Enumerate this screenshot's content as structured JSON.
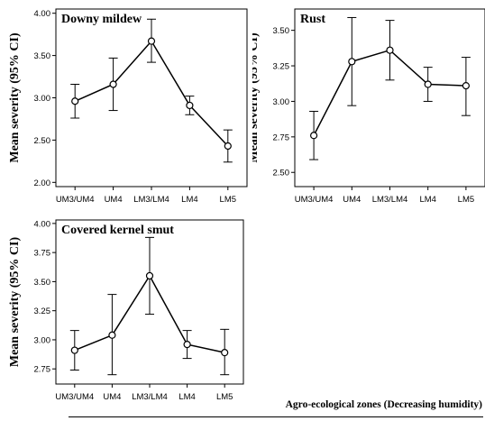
{
  "chart_data": [
    {
      "type": "line",
      "title": "Downy mildew",
      "ylabel": "Mean severity (95% CI)",
      "categories": [
        "UM3/UM4",
        "UM4",
        "LM3/LM4",
        "LM4",
        "LM5"
      ],
      "values": [
        2.96,
        3.16,
        3.67,
        2.91,
        2.43
      ],
      "ci_lower": [
        2.76,
        2.85,
        3.42,
        2.8,
        2.24
      ],
      "ci_upper": [
        3.16,
        3.47,
        3.93,
        3.02,
        2.62
      ],
      "ylim": [
        1.95,
        4.05
      ],
      "yticks": [
        "2.00",
        "2.50",
        "3.00",
        "3.50",
        "4.00"
      ],
      "ytick_values": [
        2.0,
        2.5,
        3.0,
        3.5,
        4.0
      ]
    },
    {
      "type": "line",
      "title": "Rust",
      "ylabel": "Mean severity (95% CI)",
      "categories": [
        "UM3/UM4",
        "UM4",
        "LM3/LM4",
        "LM4",
        "LM5"
      ],
      "values": [
        2.76,
        3.28,
        3.36,
        3.12,
        3.11
      ],
      "ci_lower": [
        2.59,
        2.97,
        3.15,
        3.0,
        2.9
      ],
      "ci_upper": [
        2.93,
        3.59,
        3.57,
        3.24,
        3.31
      ],
      "ylim": [
        2.4,
        3.65
      ],
      "yticks": [
        "2.50",
        "2.75",
        "3.00",
        "3.25",
        "3.50"
      ],
      "ytick_values": [
        2.5,
        2.75,
        3.0,
        3.25,
        3.5
      ]
    },
    {
      "type": "line",
      "title": "Covered kernel smut",
      "ylabel": "Mean severity (95% CI)",
      "categories": [
        "UM3/UM4",
        "UM4",
        "LM3/LM4",
        "LM4",
        "LM5"
      ],
      "values": [
        2.91,
        3.04,
        3.55,
        2.96,
        2.89
      ],
      "ci_lower": [
        2.74,
        2.7,
        3.22,
        2.84,
        2.7
      ],
      "ci_upper": [
        3.08,
        3.39,
        3.88,
        3.08,
        3.09
      ],
      "ylim": [
        2.62,
        4.03
      ],
      "yticks": [
        "2.75",
        "3.00",
        "3.25",
        "3.50",
        "3.75",
        "4.00"
      ],
      "ytick_values": [
        2.75,
        3.0,
        3.25,
        3.5,
        3.75,
        4.0
      ]
    }
  ],
  "footer": {
    "xlabel": "Agro-ecological zones (Decreasing humidity)"
  }
}
